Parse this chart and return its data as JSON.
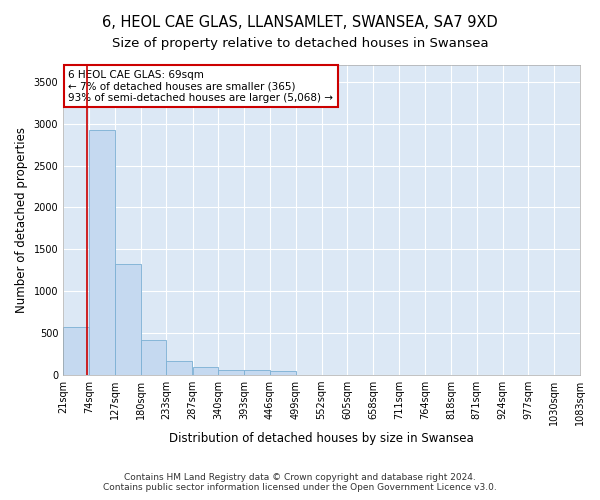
{
  "title1": "6, HEOL CAE GLAS, LLANSAMLET, SWANSEA, SA7 9XD",
  "title2": "Size of property relative to detached houses in Swansea",
  "xlabel": "Distribution of detached houses by size in Swansea",
  "ylabel": "Number of detached properties",
  "footer1": "Contains HM Land Registry data © Crown copyright and database right 2024.",
  "footer2": "Contains public sector information licensed under the Open Government Licence v3.0.",
  "annotation_title": "6 HEOL CAE GLAS: 69sqm",
  "annotation_line1": "← 7% of detached houses are smaller (365)",
  "annotation_line2": "93% of semi-detached houses are larger (5,068) →",
  "bar_color": "#c5d9f0",
  "bar_edge_color": "#7bafd4",
  "marker_color": "#cc0000",
  "marker_value": 69,
  "bin_edges": [
    21,
    74,
    127,
    180,
    233,
    287,
    340,
    393,
    446,
    499,
    552,
    605,
    658,
    711,
    764,
    818,
    871,
    924,
    977,
    1030,
    1083
  ],
  "bin_labels": [
    "21sqm",
    "74sqm",
    "127sqm",
    "180sqm",
    "233sqm",
    "287sqm",
    "340sqm",
    "393sqm",
    "446sqm",
    "499sqm",
    "552sqm",
    "605sqm",
    "658sqm",
    "711sqm",
    "764sqm",
    "818sqm",
    "871sqm",
    "924sqm",
    "977sqm",
    "1030sqm",
    "1083sqm"
  ],
  "counts": [
    570,
    2920,
    1320,
    415,
    165,
    90,
    60,
    55,
    50,
    0,
    0,
    0,
    0,
    0,
    0,
    0,
    0,
    0,
    0,
    0
  ],
  "ylim": [
    0,
    3700
  ],
  "yticks": [
    0,
    500,
    1000,
    1500,
    2000,
    2500,
    3000,
    3500
  ],
  "fig_bg": "#ffffff",
  "plot_bg": "#dce8f5",
  "grid_color": "#ffffff",
  "title1_fontsize": 10.5,
  "title2_fontsize": 9.5,
  "axis_label_fontsize": 8.5,
  "tick_fontsize": 7,
  "footer_fontsize": 6.5,
  "annot_fontsize": 7.5
}
